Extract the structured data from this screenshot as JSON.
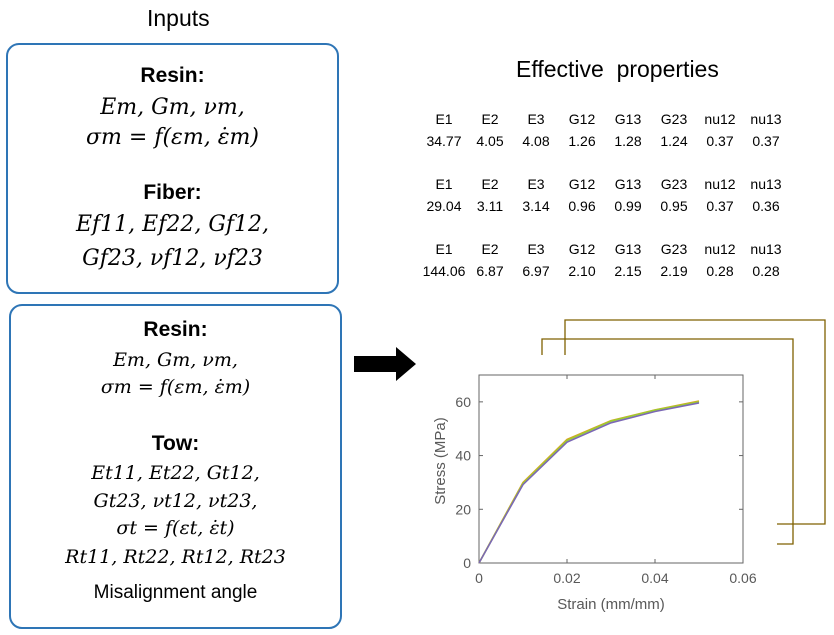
{
  "inputs_title": "Inputs",
  "box1": {
    "resin_head": "Resin:",
    "resin_line1": "Em, Gm, νm,",
    "resin_line2": "σm = f(εm, ε̇m)",
    "fiber_head": "Fiber:",
    "fiber_line1": "Ef11, Ef22, Gf12,",
    "fiber_line2": "Gf23, νf12, νf23"
  },
  "box2": {
    "resin_head": "Resin:",
    "resin_line1": "Em, Gm, νm,",
    "resin_line2": "σm = f(εm, ε̇m)",
    "tow_head": "Tow:",
    "tow_line1": "Et11, Et22, Gt12,",
    "tow_line2": "Gt23, νt12, νt23,",
    "tow_line3": "σt = f(εt, ε̇t)",
    "tow_line4": "Rt11, Rt22, Rt12, Rt23",
    "misalignment": "Misalignment angle"
  },
  "effective_title": "Effective  properties",
  "properties": {
    "header": [
      "E1",
      "E2",
      "E3",
      "G12",
      "G13",
      "G23",
      "nu12",
      "nu13"
    ],
    "rows": [
      [
        "34.77",
        "4.05",
        "4.08",
        "1.26",
        "1.28",
        "1.24",
        "0.37",
        "0.37"
      ],
      [
        "29.04",
        "3.11",
        "3.14",
        "0.96",
        "0.99",
        "0.95",
        "0.37",
        "0.36"
      ],
      [
        "144.06",
        "6.87",
        "6.97",
        "2.10",
        "2.15",
        "2.19",
        "0.28",
        "0.28"
      ]
    ]
  },
  "chart_data": {
    "type": "line",
    "title": "",
    "xlabel": "Strain (mm/mm)",
    "ylabel": "Stress (MPa)",
    "xlim": [
      0,
      0.06
    ],
    "ylim": [
      0,
      70
    ],
    "xticks": [
      "0",
      "0.02",
      "0.04",
      "0.06"
    ],
    "yticks": [
      "0",
      "20",
      "40",
      "60"
    ],
    "series": [
      {
        "color": "#d9a520",
        "x": [
          0,
          0.01,
          0.02,
          0.03,
          0.04,
          0.05
        ],
        "y": [
          0,
          30,
          46,
          53,
          57,
          60.3
        ]
      },
      {
        "color": "#9acd32",
        "x": [
          0,
          0.01,
          0.02,
          0.03,
          0.04,
          0.05
        ],
        "y": [
          0,
          29.6,
          45.6,
          52.8,
          56.9,
          60.0
        ]
      },
      {
        "color": "#7b68b5",
        "x": [
          0,
          0.01,
          0.02,
          0.03,
          0.04,
          0.05
        ],
        "y": [
          0,
          29.2,
          45.0,
          52.2,
          56.4,
          59.6
        ]
      }
    ]
  },
  "colors": {
    "box_border": "#2e75b6",
    "bracket": "#7f6000",
    "arrow": "#000000"
  }
}
